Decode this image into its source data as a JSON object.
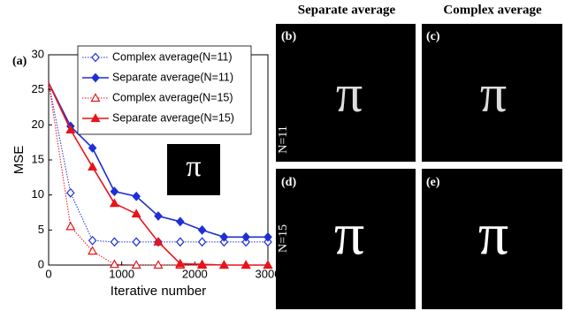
{
  "chart_data": {
    "type": "line",
    "panel_label": "(a)",
    "xlabel": "Iterative number",
    "ylabel": "MSE",
    "x": [
      0,
      300,
      600,
      900,
      1200,
      1500,
      1800,
      2100,
      2400,
      2700,
      3000
    ],
    "xlim": [
      0,
      3000
    ],
    "xticks": [
      0,
      1000,
      2000,
      3000
    ],
    "ylim": [
      0,
      30
    ],
    "yticks": [
      0,
      5,
      10,
      15,
      20,
      25,
      30
    ],
    "legend": "upper right",
    "series": [
      {
        "name": "Complex average(N=11)",
        "color": "#1f2fd6",
        "marker": "diamond",
        "filled": false,
        "dashed": true,
        "values": [
          26,
          10.3,
          3.5,
          3.3,
          3.3,
          3.3,
          3.3,
          3.3,
          3.3,
          3.3,
          3.3
        ]
      },
      {
        "name": "Separate average(N=11)",
        "color": "#1f2fd6",
        "marker": "diamond",
        "filled": true,
        "dashed": false,
        "values": [
          26,
          19.8,
          16.7,
          10.5,
          9.8,
          7,
          6.2,
          5,
          4,
          4,
          4
        ]
      },
      {
        "name": "Complex average(N=15)",
        "color": "#e8141b",
        "marker": "triangle",
        "filled": false,
        "dashed": true,
        "values": [
          26,
          5.5,
          2,
          0.1,
          0,
          0,
          0,
          0,
          0,
          0,
          0
        ]
      },
      {
        "name": "Separate average(N=15)",
        "color": "#e8141b",
        "marker": "triangle",
        "filled": true,
        "dashed": false,
        "values": [
          26,
          19.3,
          14,
          8.8,
          7.3,
          3.3,
          0.2,
          0.1,
          0,
          0,
          0
        ]
      }
    ],
    "inset_symbol": "π"
  },
  "panels": {
    "column_titles": [
      "Separate average",
      "Complex average"
    ],
    "row_labels": [
      "N=11",
      "N=15"
    ],
    "labels": [
      "(b)",
      "(c)",
      "(d)",
      "(e)"
    ],
    "symbol": "π"
  }
}
